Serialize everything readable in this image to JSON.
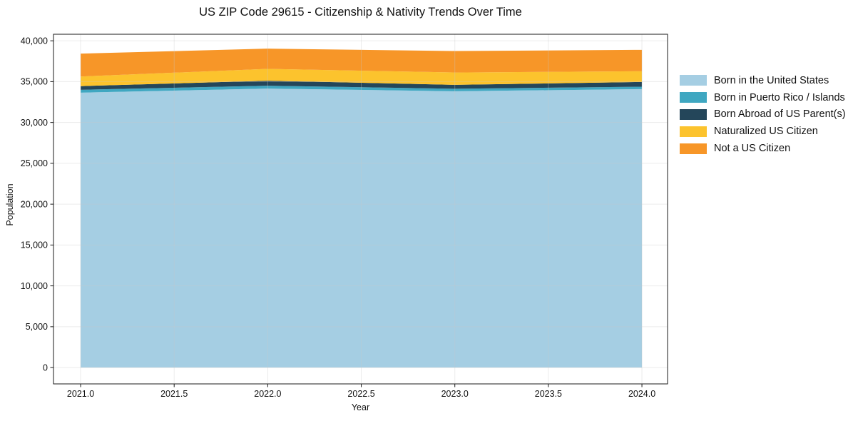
{
  "chart_data": {
    "type": "area",
    "stacked": true,
    "title": "US ZIP Code 29615 - Citizenship & Nativity Trends Over Time",
    "xlabel": "Year",
    "ylabel": "Population",
    "x": [
      2021,
      2022,
      2023,
      2024
    ],
    "series": [
      {
        "name": "Born in the United States",
        "color": "#a5cee3",
        "values": [
          33650,
          34150,
          33820,
          34090
        ]
      },
      {
        "name": "Born in Puerto Rico / Islands",
        "color": "#3fa7c1",
        "values": [
          350,
          350,
          310,
          290
        ]
      },
      {
        "name": "Born Abroad of US Parent(s)",
        "color": "#24465a",
        "values": [
          450,
          610,
          480,
          580
        ]
      },
      {
        "name": "Naturalized US Citizen",
        "color": "#fcc32d",
        "values": [
          1180,
          1450,
          1510,
          1310
        ]
      },
      {
        "name": "Not a US Citizen",
        "color": "#f79628",
        "values": [
          2800,
          2480,
          2630,
          2620
        ]
      }
    ],
    "totals": [
      38430,
      39040,
      38750,
      38890
    ],
    "xlim": [
      2020.855,
      2024.137
    ],
    "ylim": [
      -2000,
      40800
    ],
    "xticks": [
      2021.0,
      2021.5,
      2022.0,
      2022.5,
      2023.0,
      2023.5,
      2024.0
    ],
    "xtick_labels": [
      "2021.0",
      "2021.5",
      "2022.0",
      "2022.5",
      "2023.0",
      "2023.5",
      "2024.0"
    ],
    "yticks": [
      0,
      5000,
      10000,
      15000,
      20000,
      25000,
      30000,
      35000,
      40000
    ],
    "ytick_labels": [
      "0",
      "5,000",
      "10,000",
      "15,000",
      "20,000",
      "25,000",
      "30,000",
      "35,000",
      "40,000"
    ],
    "grid": true,
    "grid_color": "#c8c8c8",
    "axis_color": "#1a1a1a",
    "legend_position": "right-outside"
  }
}
